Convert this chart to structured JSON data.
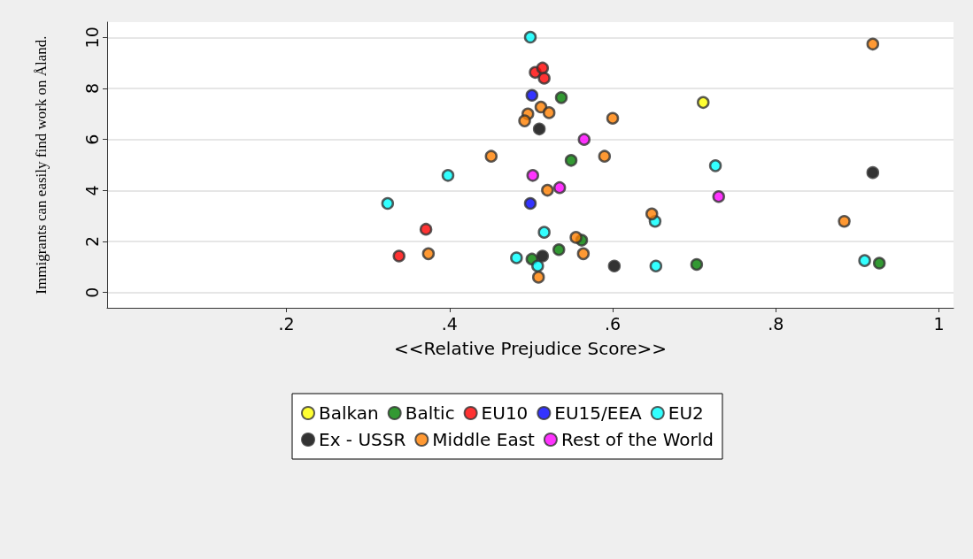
{
  "chart_data": {
    "type": "scatter",
    "xlabel": "<<Relative Prejudice Score>>",
    "ylabel": "Immigrants can easily find work on Åland.",
    "xlim": [
      -0.02,
      1.018
    ],
    "ylim": [
      -0.6,
      10.6
    ],
    "xticks": [
      {
        "value": 0.2,
        "label": ".2"
      },
      {
        "value": 0.4,
        "label": ".4"
      },
      {
        "value": 0.6,
        "label": ".6"
      },
      {
        "value": 0.8,
        "label": ".8"
      },
      1
    ],
    "yticks": [
      0,
      2,
      4,
      6,
      8,
      10
    ],
    "grid": "y",
    "legend": "bottom",
    "marker": "circle",
    "series": [
      {
        "name": "Balkan",
        "color": "#ffff00",
        "x": [
          0.711
        ],
        "values": [
          7.45
        ]
      },
      {
        "name": "Baltic",
        "color": "#008000",
        "x": [
          0.537,
          0.549,
          0.562,
          0.534,
          0.501,
          0.703,
          0.927
        ],
        "values": [
          7.64,
          5.18,
          2.05,
          1.68,
          1.31,
          1.1,
          1.15
        ]
      },
      {
        "name": "EU10",
        "color": "#ff0000",
        "x": [
          0.505,
          0.514,
          0.516,
          0.371,
          0.338
        ],
        "values": [
          8.63,
          8.8,
          8.4,
          2.48,
          1.43
        ]
      },
      {
        "name": "EU15/EEA",
        "color": "#0000ff",
        "x": [
          0.501,
          0.499
        ],
        "values": [
          7.73,
          3.49
        ]
      },
      {
        "name": "EU2",
        "color": "#00ffff",
        "x": [
          0.499,
          0.398,
          0.324,
          0.726,
          0.652,
          0.516,
          0.482,
          0.508,
          0.653,
          0.909
        ],
        "values": [
          10.01,
          4.59,
          3.49,
          4.97,
          2.79,
          2.36,
          1.36,
          1.04,
          1.04,
          1.25
        ]
      },
      {
        "name": "Ex - USSR",
        "color": "#000000",
        "x": [
          0.51,
          0.514,
          0.602,
          0.919
        ],
        "values": [
          6.41,
          1.43,
          1.04,
          4.7
        ]
      },
      {
        "name": "Middle East",
        "color": "#ff8000",
        "x": [
          0.451,
          0.374,
          0.512,
          0.496,
          0.522,
          0.492,
          0.6,
          0.59,
          0.52,
          0.648,
          0.555,
          0.564,
          0.509,
          0.919,
          0.884
        ],
        "values": [
          5.34,
          1.52,
          7.27,
          7.0,
          7.05,
          6.73,
          6.83,
          5.34,
          4.01,
          3.08,
          2.16,
          1.52,
          0.6,
          9.74,
          2.79
        ]
      },
      {
        "name": "Rest of the World",
        "color": "#ff00ff",
        "x": [
          0.565,
          0.502,
          0.535,
          0.73
        ],
        "values": [
          6.0,
          4.59,
          4.11,
          3.76
        ]
      }
    ]
  }
}
